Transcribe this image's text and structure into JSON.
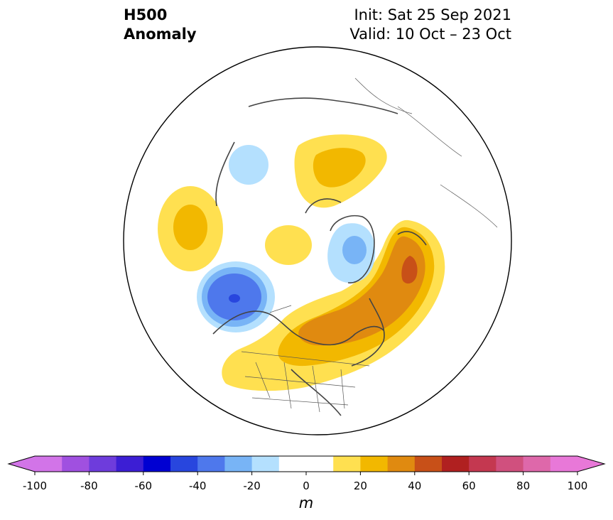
{
  "title": {
    "line1": "H500",
    "line2": "Anomaly"
  },
  "init": {
    "line1": "Init: Sat 25 Sep 2021",
    "line2": "Valid: 10 Oct – 23 Oct"
  },
  "colorbar": {
    "unit": "m",
    "ticks": [
      "-100",
      "-80",
      "-60",
      "-40",
      "-20",
      "0",
      "20",
      "40",
      "60",
      "80",
      "100"
    ],
    "range": [
      -100,
      100
    ],
    "step": 10,
    "extend": "both",
    "colors": [
      "#d274e8",
      "#a050e0",
      "#6e3cdc",
      "#3c1ed4",
      "#0000d2",
      "#2846de",
      "#4e78ec",
      "#78b4f6",
      "#b4e0fe",
      "#ffffff",
      "#ffffff",
      "#ffe050",
      "#f2b800",
      "#e08a10",
      "#c85018",
      "#b02020",
      "#c43850",
      "#d0507e",
      "#de68aa",
      "#e878d8"
    ],
    "under_color": "#d274e8",
    "over_color": "#e878d8"
  },
  "map": {
    "projection": "north-polar-stereographic",
    "anomalies": [
      {
        "region": "eastern-north-america-to-atlantic",
        "sign": "positive",
        "peak_m": 45
      },
      {
        "region": "north-pacific-gulf-of-alaska",
        "sign": "negative",
        "peak_m": -55
      },
      {
        "region": "greenland",
        "sign": "negative",
        "peak_m": -35
      },
      {
        "region": "western-siberia",
        "sign": "positive",
        "peak_m": 25
      },
      {
        "region": "east-asia",
        "sign": "positive",
        "peak_m": 25
      },
      {
        "region": "eastern-siberia",
        "sign": "negative",
        "peak_m": -15
      }
    ]
  }
}
